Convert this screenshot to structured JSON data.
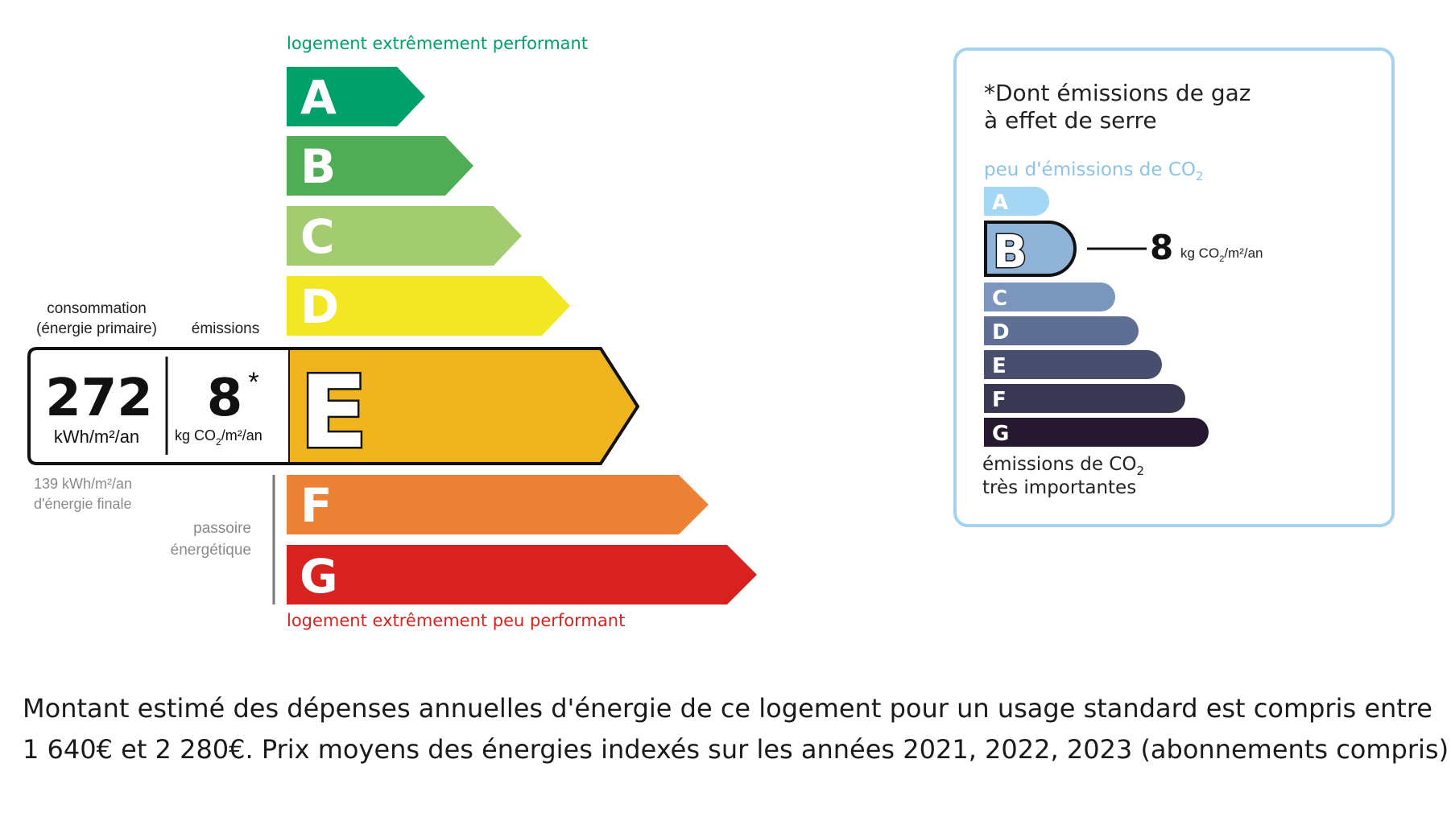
{
  "energy": {
    "top_label": "logement extrêmement performant",
    "bottom_label": "logement extrêmement peu performant",
    "classes": [
      "A",
      "B",
      "C",
      "D",
      "E",
      "F",
      "G"
    ],
    "class_colors": [
      "#00a06a",
      "#4fae55",
      "#a3cc71",
      "#f3e622",
      "#f0b51e",
      "#ec8235",
      "#d7221f"
    ],
    "current_class": "E",
    "consumption_label_1": "consommation",
    "consumption_label_2": "(énergie primaire)",
    "emissions_label": "émissions",
    "consumption_value": "272",
    "consumption_unit": "kWh/m²/an",
    "emissions_value": "8",
    "emissions_asterisk": "*",
    "emissions_unit_a": "kg CO",
    "emissions_unit_sub": "2",
    "emissions_unit_b": "/m²/an",
    "final_energy_1": "139 kWh/m²/an",
    "final_energy_2": "d'énergie finale",
    "passoire_1": "passoire",
    "passoire_2": "énergétique"
  },
  "ghg": {
    "title_1": "*Dont émissions de gaz",
    "title_2": "à effet de serre",
    "top_label_a": "peu d'émissions de CO",
    "top_label_sub": "2",
    "classes": [
      "A",
      "B",
      "C",
      "D",
      "E",
      "F",
      "G"
    ],
    "class_colors": [
      "#a3d7f4",
      "#8fb4d8",
      "#7b96bd",
      "#5f6f93",
      "#4a4e6e",
      "#383853",
      "#26182f"
    ],
    "current_class": "B",
    "value": "8",
    "unit_a": "kg CO",
    "unit_sub": "2",
    "unit_b": "/m²/an",
    "bottom_label_1a": "émissions de CO",
    "bottom_label_1sub": "2",
    "bottom_label_2": "très importantes",
    "border_color": "#a3d3ee"
  },
  "footer": {
    "line_1": "Montant estimé des dépenses annuelles d'énergie de ce logement pour un usage standard est compris entre",
    "line_2": "1 640€ et 2 280€. Prix moyens des énergies indexés sur les années 2021, 2022, 2023 (abonnements compris)."
  }
}
